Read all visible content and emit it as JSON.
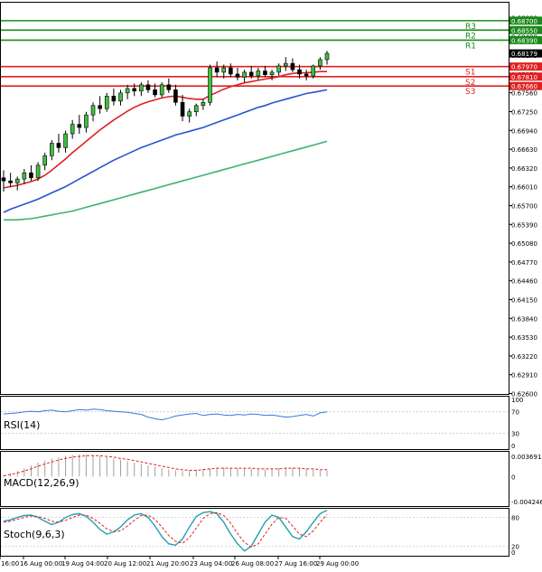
{
  "chart_data": {
    "type": "candlestick",
    "main": {
      "ylim": [
        0.6276,
        0.69
      ],
      "price_ticks": [
        "0.68800",
        "0.68490",
        "0.68179",
        "0.67870",
        "0.67560",
        "0.67250",
        "0.66940",
        "0.66630",
        "0.66320",
        "0.66010",
        "0.65700",
        "0.65390",
        "0.65080",
        "0.64770",
        "0.64460",
        "0.64150",
        "0.63840",
        "0.63530",
        "0.63220",
        "0.62910",
        "0.62600"
      ],
      "levels": [
        {
          "name": "R3",
          "value": 0.687,
          "label": "0.68700",
          "color": "#1a8a1a"
        },
        {
          "name": "R2",
          "value": 0.6855,
          "label": "0.68550",
          "color": "#1a8a1a"
        },
        {
          "name": "R1",
          "value": 0.6839,
          "label": "0.68390",
          "color": "#1a8a1a"
        },
        {
          "name": "S1",
          "value": 0.6797,
          "label": "0.67970",
          "color": "#e02020"
        },
        {
          "name": "S2",
          "value": 0.6781,
          "label": "0.67810",
          "color": "#e02020"
        },
        {
          "name": "S3",
          "value": 0.6766,
          "label": "0.67660",
          "color": "#e02020"
        }
      ],
      "current_price": {
        "value": 0.68179,
        "label": "0.68179"
      },
      "candles": [
        [
          0.662,
          0.6632,
          0.6598,
          0.6615
        ],
        [
          0.6615,
          0.6628,
          0.6605,
          0.6612
        ],
        [
          0.6612,
          0.6622,
          0.66,
          0.6618
        ],
        [
          0.6618,
          0.6634,
          0.661,
          0.6628
        ],
        [
          0.6628,
          0.664,
          0.6615,
          0.662
        ],
        [
          0.662,
          0.6645,
          0.6615,
          0.664
        ],
        [
          0.664,
          0.666,
          0.6632,
          0.6655
        ],
        [
          0.6655,
          0.668,
          0.6648,
          0.6675
        ],
        [
          0.6675,
          0.669,
          0.666,
          0.6668
        ],
        [
          0.6668,
          0.6695,
          0.666,
          0.669
        ],
        [
          0.669,
          0.6712,
          0.6682,
          0.6705
        ],
        [
          0.6705,
          0.672,
          0.669,
          0.67
        ],
        [
          0.67,
          0.6725,
          0.6692,
          0.672
        ],
        [
          0.672,
          0.674,
          0.671,
          0.6735
        ],
        [
          0.6735,
          0.675,
          0.6722,
          0.673
        ],
        [
          0.673,
          0.6755,
          0.6725,
          0.675
        ],
        [
          0.675,
          0.6762,
          0.6735,
          0.6742
        ],
        [
          0.6742,
          0.676,
          0.6735,
          0.6755
        ],
        [
          0.6755,
          0.6768,
          0.6745,
          0.6762
        ],
        [
          0.6762,
          0.677,
          0.675,
          0.6758
        ],
        [
          0.6758,
          0.6772,
          0.675,
          0.6768
        ],
        [
          0.6768,
          0.6775,
          0.6755,
          0.676
        ],
        [
          0.676,
          0.677,
          0.6748,
          0.6752
        ],
        [
          0.6752,
          0.6772,
          0.6748,
          0.6768
        ],
        [
          0.6768,
          0.6778,
          0.6755,
          0.676
        ],
        [
          0.676,
          0.6768,
          0.6735,
          0.674
        ],
        [
          0.674,
          0.6752,
          0.671,
          0.6718
        ],
        [
          0.6718,
          0.673,
          0.6708,
          0.6725
        ],
        [
          0.6725,
          0.6738,
          0.6718,
          0.6735
        ],
        [
          0.6735,
          0.6745,
          0.6728,
          0.674
        ],
        [
          0.674,
          0.68,
          0.6735,
          0.6795
        ],
        [
          0.6795,
          0.6805,
          0.678,
          0.6788
        ],
        [
          0.6788,
          0.68,
          0.6778,
          0.6795
        ],
        [
          0.6795,
          0.6802,
          0.678,
          0.6785
        ],
        [
          0.6785,
          0.6795,
          0.6775,
          0.678
        ],
        [
          0.678,
          0.6792,
          0.6772,
          0.6788
        ],
        [
          0.6788,
          0.6798,
          0.6778,
          0.6782
        ],
        [
          0.6782,
          0.6795,
          0.6776,
          0.679
        ],
        [
          0.679,
          0.6798,
          0.678,
          0.6784
        ],
        [
          0.6784,
          0.6792,
          0.6775,
          0.6788
        ],
        [
          0.6788,
          0.6802,
          0.6782,
          0.6798
        ],
        [
          0.6798,
          0.6812,
          0.679,
          0.6802
        ],
        [
          0.6802,
          0.681,
          0.6788,
          0.6792
        ],
        [
          0.6792,
          0.68,
          0.6778,
          0.6785
        ],
        [
          0.6785,
          0.6792,
          0.6775,
          0.6782
        ],
        [
          0.6782,
          0.68,
          0.6778,
          0.6798
        ],
        [
          0.6798,
          0.6812,
          0.6792,
          0.6808
        ],
        [
          0.6808,
          0.6822,
          0.68,
          0.6818
        ]
      ],
      "ma_fast": [
        0.6604,
        0.6606,
        0.6608,
        0.6611,
        0.6614,
        0.6618,
        0.6624,
        0.6632,
        0.6641,
        0.665,
        0.666,
        0.6669,
        0.6678,
        0.6687,
        0.6696,
        0.6704,
        0.6712,
        0.6719,
        0.6726,
        0.6732,
        0.6737,
        0.6741,
        0.6744,
        0.6747,
        0.6749,
        0.675,
        0.6748,
        0.6746,
        0.6745,
        0.6745,
        0.6751,
        0.6756,
        0.6761,
        0.6765,
        0.6768,
        0.6771,
        0.6773,
        0.6775,
        0.6777,
        0.6779,
        0.6781,
        0.6784,
        0.6786,
        0.6787,
        0.6787,
        0.6788,
        0.6789,
        0.6789
      ],
      "ma_mid": [
        0.6565,
        0.657,
        0.6574,
        0.6578,
        0.6582,
        0.6586,
        0.6591,
        0.6596,
        0.6601,
        0.6606,
        0.6612,
        0.6618,
        0.6624,
        0.663,
        0.6636,
        0.6642,
        0.6648,
        0.6653,
        0.6658,
        0.6663,
        0.6668,
        0.6672,
        0.6676,
        0.668,
        0.6684,
        0.6688,
        0.6691,
        0.6694,
        0.6697,
        0.67,
        0.6704,
        0.6708,
        0.6712,
        0.6716,
        0.672,
        0.6724,
        0.6728,
        0.6732,
        0.6735,
        0.6739,
        0.6742,
        0.6745,
        0.6748,
        0.6751,
        0.6754,
        0.6756,
        0.6758,
        0.676
      ],
      "ma_slow": [
        0.6553,
        0.6553,
        0.6553,
        0.6554,
        0.6555,
        0.6557,
        0.6559,
        0.6561,
        0.6563,
        0.6565,
        0.6567,
        0.657,
        0.6573,
        0.6576,
        0.6579,
        0.6582,
        0.6585,
        0.6588,
        0.6591,
        0.6594,
        0.6597,
        0.66,
        0.6603,
        0.6606,
        0.6609,
        0.6612,
        0.6615,
        0.6618,
        0.6621,
        0.6624,
        0.6627,
        0.663,
        0.6633,
        0.6636,
        0.6639,
        0.6642,
        0.6645,
        0.6648,
        0.6651,
        0.6654,
        0.6657,
        0.666,
        0.6663,
        0.6666,
        0.6669,
        0.6672,
        0.6675,
        0.6678
      ],
      "x_labels": [
        "16:00",
        "16 Aug 00:00",
        "19 Aug 04:00",
        "20 Aug 12:00",
        "21 Aug 20:00",
        "23 Aug 04:00",
        "26 Aug 08:00",
        "27 Aug 16:00",
        "29 Aug 00:00"
      ]
    },
    "rsi": {
      "label": "RSI(14)",
      "ylim": [
        0,
        100
      ],
      "ticks": [
        "100",
        "70",
        "30",
        "0"
      ],
      "values": [
        66,
        67,
        68,
        70,
        71,
        70,
        72,
        73,
        71,
        70,
        72,
        74,
        73,
        75,
        74,
        72,
        71,
        70,
        69,
        67,
        65,
        60,
        57,
        55,
        58,
        62,
        64,
        66,
        67,
        63,
        65,
        66,
        64,
        63,
        65,
        64,
        66,
        65,
        63,
        64,
        62,
        60,
        61,
        63,
        65,
        62,
        68,
        70
      ]
    },
    "macd": {
      "label": "MACD(12,26,9)",
      "ylim": [
        -0.004246,
        0.003691
      ],
      "ticks": [
        "0.003691",
        "0",
        "-0.004246"
      ],
      "histogram": [
        0.0002,
        0.0005,
        0.0008,
        0.0012,
        0.0016,
        0.002,
        0.0023,
        0.0026,
        0.0028,
        0.003,
        0.0031,
        0.0032,
        0.0032,
        0.0031,
        0.003,
        0.0028,
        0.0026,
        0.0024,
        0.0022,
        0.002,
        0.0018,
        0.0016,
        0.0014,
        0.0012,
        0.001,
        0.0009,
        0.0008,
        0.0009,
        0.001,
        0.0011,
        0.0012,
        0.0013,
        0.0013,
        0.0013,
        0.0012,
        0.0012,
        0.0011,
        0.001,
        0.001,
        0.0011,
        0.0012,
        0.0013,
        0.0013,
        0.0012,
        0.0011,
        0.001,
        0.0009,
        0.0009
      ],
      "signal": [
        0.0001,
        0.0003,
        0.0005,
        0.0008,
        0.0011,
        0.0015,
        0.0018,
        0.0021,
        0.0024,
        0.0026,
        0.0028,
        0.0029,
        0.003,
        0.003,
        0.003,
        0.0029,
        0.0028,
        0.0026,
        0.0025,
        0.0023,
        0.0021,
        0.0019,
        0.0017,
        0.0015,
        0.0013,
        0.0011,
        0.001,
        0.0009,
        0.0009,
        0.001,
        0.0011,
        0.0012,
        0.0012,
        0.0012,
        0.0012,
        0.0012,
        0.0012,
        0.0011,
        0.0011,
        0.0011,
        0.0011,
        0.0012,
        0.0012,
        0.0012,
        0.0011,
        0.0011,
        0.001,
        0.001
      ]
    },
    "stoch": {
      "label": "Stoch(9,6,3)",
      "ylim": [
        0,
        100
      ],
      "ticks": [
        "80",
        "20",
        "0"
      ],
      "k": [
        72,
        75,
        80,
        84,
        85,
        80,
        72,
        65,
        70,
        80,
        86,
        88,
        82,
        70,
        55,
        45,
        50,
        60,
        75,
        85,
        88,
        80,
        62,
        40,
        25,
        22,
        35,
        60,
        82,
        90,
        92,
        88,
        70,
        45,
        25,
        10,
        20,
        45,
        70,
        85,
        80,
        60,
        40,
        35,
        50,
        70,
        88,
        95
      ],
      "d": [
        70,
        72,
        76,
        80,
        83,
        82,
        78,
        72,
        70,
        74,
        80,
        85,
        85,
        78,
        68,
        56,
        50,
        52,
        62,
        74,
        84,
        85,
        76,
        60,
        42,
        30,
        26,
        38,
        58,
        78,
        88,
        90,
        84,
        68,
        46,
        28,
        18,
        25,
        45,
        66,
        80,
        78,
        62,
        45,
        40,
        52,
        70,
        86
      ]
    }
  }
}
